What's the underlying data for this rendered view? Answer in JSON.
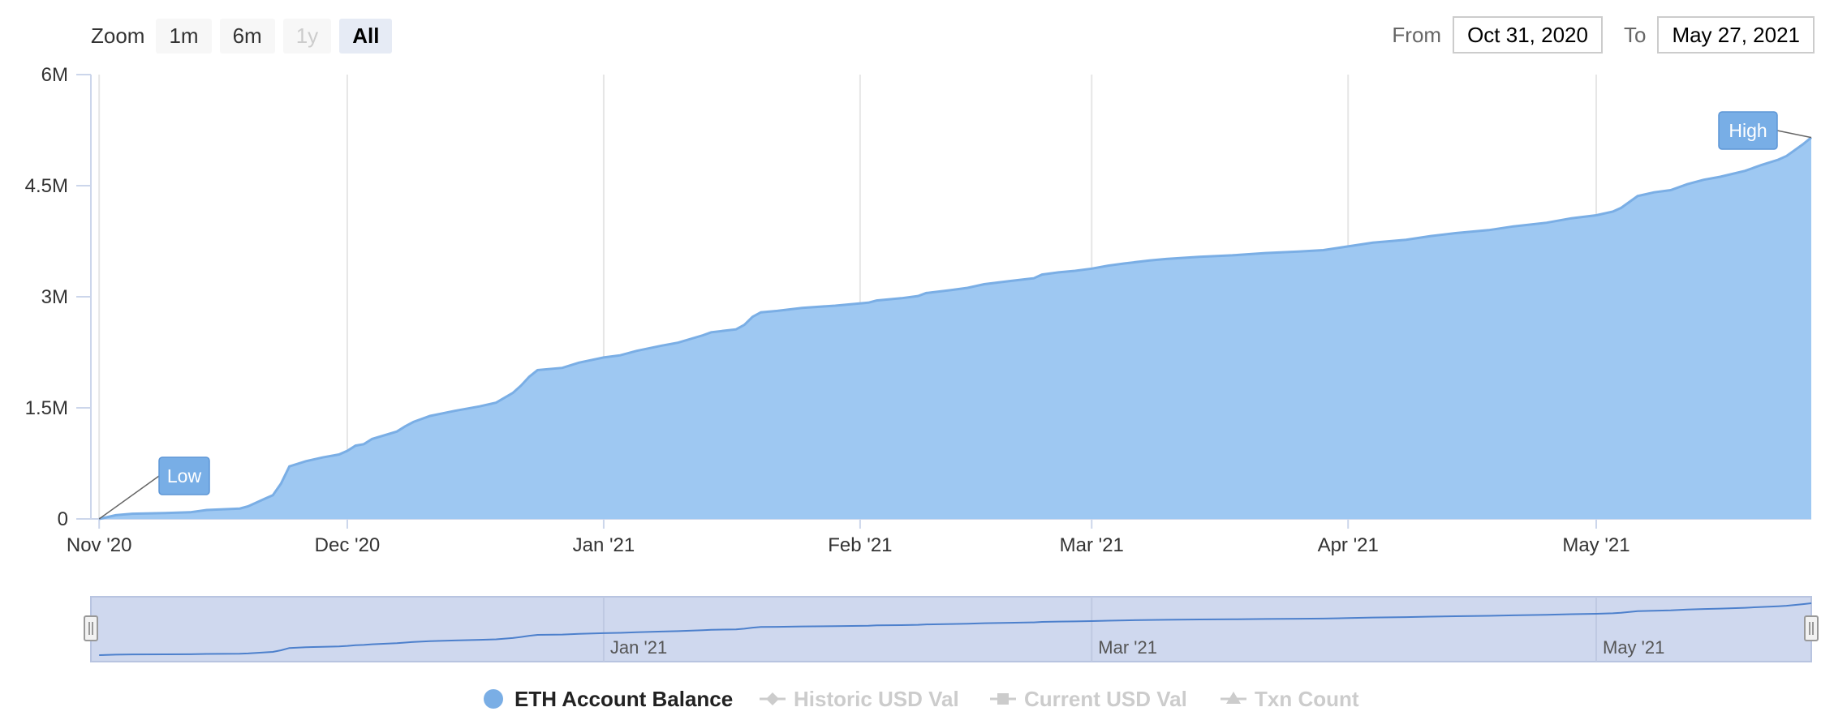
{
  "toolbar": {
    "zoom_label": "Zoom",
    "zoom_buttons": [
      "1m",
      "6m",
      "1y",
      "All"
    ],
    "from_label": "From",
    "from_value": "Oct 31, 2020",
    "to_label": "To",
    "to_value": "May 27, 2021"
  },
  "colors": {
    "area_fill": "#9ec8f2",
    "area_line": "#7aaee5",
    "label_box": "#78aee6",
    "grid": "#e6e6e6",
    "navigator_fill": "#cfd8ee",
    "navigator_line": "#4d80cc",
    "legend_inactive": "#cccccc"
  },
  "chart_data": {
    "type": "area",
    "x_start": "2020-10-31",
    "x_end": "2021-05-27",
    "ylim": [
      0,
      6000000
    ],
    "y_ticks": [
      0,
      1500000,
      3000000,
      4500000,
      6000000
    ],
    "y_tick_labels": [
      "0",
      "1.5M",
      "3M",
      "4.5M",
      "6M"
    ],
    "x_ticks": [
      "2020-11-01",
      "2020-12-01",
      "2021-01-01",
      "2021-02-01",
      "2021-03-01",
      "2021-04-01",
      "2021-05-01"
    ],
    "x_tick_labels": [
      "Nov '20",
      "Dec '20",
      "Jan '21",
      "Feb '21",
      "Mar '21",
      "Apr '21",
      "May '21"
    ],
    "navigator_labels": [
      "Jan '21",
      "Mar '21",
      "May '21"
    ],
    "navigator_label_dates": [
      "2021-01-01",
      "2021-03-01",
      "2021-05-01"
    ],
    "grid": true,
    "flags": [
      {
        "date": "2020-11-01",
        "value": 0,
        "label": "Low"
      },
      {
        "date": "2021-05-27",
        "value": 5150000,
        "label": "High"
      }
    ],
    "series": [
      {
        "name": "ETH Account Balance",
        "points": [
          [
            "2020-11-01",
            0
          ],
          [
            "2020-11-03",
            50000
          ],
          [
            "2020-11-05",
            70000
          ],
          [
            "2020-11-09",
            80000
          ],
          [
            "2020-11-12",
            90000
          ],
          [
            "2020-11-14",
            120000
          ],
          [
            "2020-11-18",
            140000
          ],
          [
            "2020-11-19",
            170000
          ],
          [
            "2020-11-21",
            270000
          ],
          [
            "2020-11-22",
            320000
          ],
          [
            "2020-11-23",
            480000
          ],
          [
            "2020-11-24",
            710000
          ],
          [
            "2020-11-26",
            780000
          ],
          [
            "2020-11-28",
            830000
          ],
          [
            "2020-11-30",
            870000
          ],
          [
            "2020-12-01",
            920000
          ],
          [
            "2020-12-02",
            990000
          ],
          [
            "2020-12-03",
            1010000
          ],
          [
            "2020-12-04",
            1080000
          ],
          [
            "2020-12-07",
            1180000
          ],
          [
            "2020-12-08",
            1250000
          ],
          [
            "2020-12-09",
            1310000
          ],
          [
            "2020-12-11",
            1390000
          ],
          [
            "2020-12-14",
            1460000
          ],
          [
            "2020-12-17",
            1520000
          ],
          [
            "2020-12-19",
            1570000
          ],
          [
            "2020-12-21",
            1700000
          ],
          [
            "2020-12-22",
            1800000
          ],
          [
            "2020-12-23",
            1920000
          ],
          [
            "2020-12-24",
            2010000
          ],
          [
            "2020-12-27",
            2040000
          ],
          [
            "2020-12-29",
            2110000
          ],
          [
            "2021-01-01",
            2180000
          ],
          [
            "2021-01-03",
            2210000
          ],
          [
            "2021-01-05",
            2270000
          ],
          [
            "2021-01-08",
            2340000
          ],
          [
            "2021-01-10",
            2380000
          ],
          [
            "2021-01-13",
            2480000
          ],
          [
            "2021-01-14",
            2520000
          ],
          [
            "2021-01-17",
            2560000
          ],
          [
            "2021-01-18",
            2620000
          ],
          [
            "2021-01-19",
            2730000
          ],
          [
            "2021-01-20",
            2790000
          ],
          [
            "2021-01-22",
            2810000
          ],
          [
            "2021-01-25",
            2850000
          ],
          [
            "2021-01-29",
            2880000
          ],
          [
            "2021-02-02",
            2920000
          ],
          [
            "2021-02-03",
            2950000
          ],
          [
            "2021-02-06",
            2980000
          ],
          [
            "2021-02-08",
            3010000
          ],
          [
            "2021-02-09",
            3050000
          ],
          [
            "2021-02-12",
            3090000
          ],
          [
            "2021-02-14",
            3120000
          ],
          [
            "2021-02-16",
            3170000
          ],
          [
            "2021-02-19",
            3210000
          ],
          [
            "2021-02-22",
            3250000
          ],
          [
            "2021-02-23",
            3300000
          ],
          [
            "2021-02-25",
            3330000
          ],
          [
            "2021-02-27",
            3350000
          ],
          [
            "2021-03-01",
            3380000
          ],
          [
            "2021-03-03",
            3420000
          ],
          [
            "2021-03-05",
            3450000
          ],
          [
            "2021-03-08",
            3490000
          ],
          [
            "2021-03-10",
            3510000
          ],
          [
            "2021-03-14",
            3540000
          ],
          [
            "2021-03-18",
            3560000
          ],
          [
            "2021-03-22",
            3590000
          ],
          [
            "2021-03-26",
            3610000
          ],
          [
            "2021-03-29",
            3630000
          ],
          [
            "2021-04-01",
            3680000
          ],
          [
            "2021-04-04",
            3730000
          ],
          [
            "2021-04-08",
            3770000
          ],
          [
            "2021-04-11",
            3820000
          ],
          [
            "2021-04-14",
            3860000
          ],
          [
            "2021-04-18",
            3900000
          ],
          [
            "2021-04-21",
            3950000
          ],
          [
            "2021-04-25",
            4000000
          ],
          [
            "2021-04-28",
            4060000
          ],
          [
            "2021-05-01",
            4100000
          ],
          [
            "2021-05-03",
            4150000
          ],
          [
            "2021-05-04",
            4200000
          ],
          [
            "2021-05-05",
            4280000
          ],
          [
            "2021-05-06",
            4360000
          ],
          [
            "2021-05-08",
            4410000
          ],
          [
            "2021-05-10",
            4440000
          ],
          [
            "2021-05-12",
            4520000
          ],
          [
            "2021-05-14",
            4580000
          ],
          [
            "2021-05-16",
            4620000
          ],
          [
            "2021-05-19",
            4700000
          ],
          [
            "2021-05-21",
            4780000
          ],
          [
            "2021-05-23",
            4850000
          ],
          [
            "2021-05-24",
            4900000
          ],
          [
            "2021-05-25",
            4980000
          ],
          [
            "2021-05-26",
            5060000
          ],
          [
            "2021-05-27",
            5150000
          ]
        ]
      }
    ],
    "legend": [
      {
        "name": "ETH Account Balance",
        "active": true,
        "symbol": "circle"
      },
      {
        "name": "Historic USD Val",
        "active": false,
        "symbol": "diamond"
      },
      {
        "name": "Current USD Val",
        "active": false,
        "symbol": "square"
      },
      {
        "name": "Txn Count",
        "active": false,
        "symbol": "triangle"
      }
    ],
    "legend_placement": "bottom-center"
  }
}
